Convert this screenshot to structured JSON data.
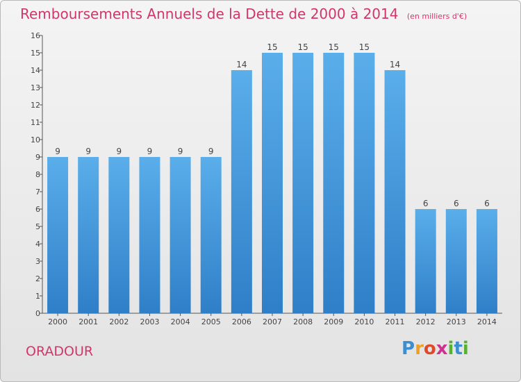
{
  "title": "Remboursements Annuels de la Dette de 2000 à 2014",
  "unit": "(en milliers d'€)",
  "place": "ORADOUR",
  "logo": "Proxiti",
  "colors": {
    "bar": "#3f8fd8",
    "title": "#d2356b",
    "axis": "#444444"
  },
  "chart_data": {
    "type": "bar",
    "categories": [
      "2000",
      "2001",
      "2002",
      "2003",
      "2004",
      "2005",
      "2006",
      "2007",
      "2008",
      "2009",
      "2010",
      "2011",
      "2012",
      "2013",
      "2014"
    ],
    "values": [
      9,
      9,
      9,
      9,
      9,
      9,
      14,
      15,
      15,
      15,
      15,
      14,
      6,
      6,
      6
    ],
    "ylim": [
      0,
      16
    ],
    "yticks": [
      0,
      1,
      2,
      3,
      4,
      5,
      6,
      7,
      8,
      9,
      10,
      11,
      12,
      13,
      14,
      15,
      16
    ],
    "grid": false
  }
}
